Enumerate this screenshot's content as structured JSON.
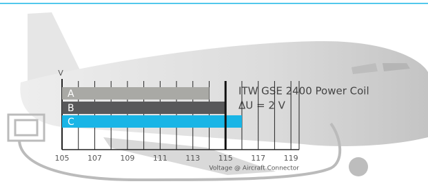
{
  "chart_data": {
    "type": "bar",
    "orientation": "horizontal",
    "y_axis_label": "V",
    "x_axis_label": "Voltage @ Aircraft Connector",
    "annotations": [
      "ITW GSE 2400 Power Coil",
      "ΔU = 2 V"
    ],
    "categories": [
      "A",
      "B",
      "C"
    ],
    "values": [
      114,
      115,
      116
    ],
    "colors": [
      "#a9a9a5",
      "#58585a",
      "#19b5e6"
    ],
    "xlim": [
      105,
      119.5
    ],
    "xticks": [
      105,
      107,
      109,
      111,
      113,
      115,
      117,
      119
    ],
    "minor_xticks": [
      106,
      108,
      110,
      112,
      114,
      116,
      118
    ],
    "reference_line": 115,
    "grid": true
  }
}
